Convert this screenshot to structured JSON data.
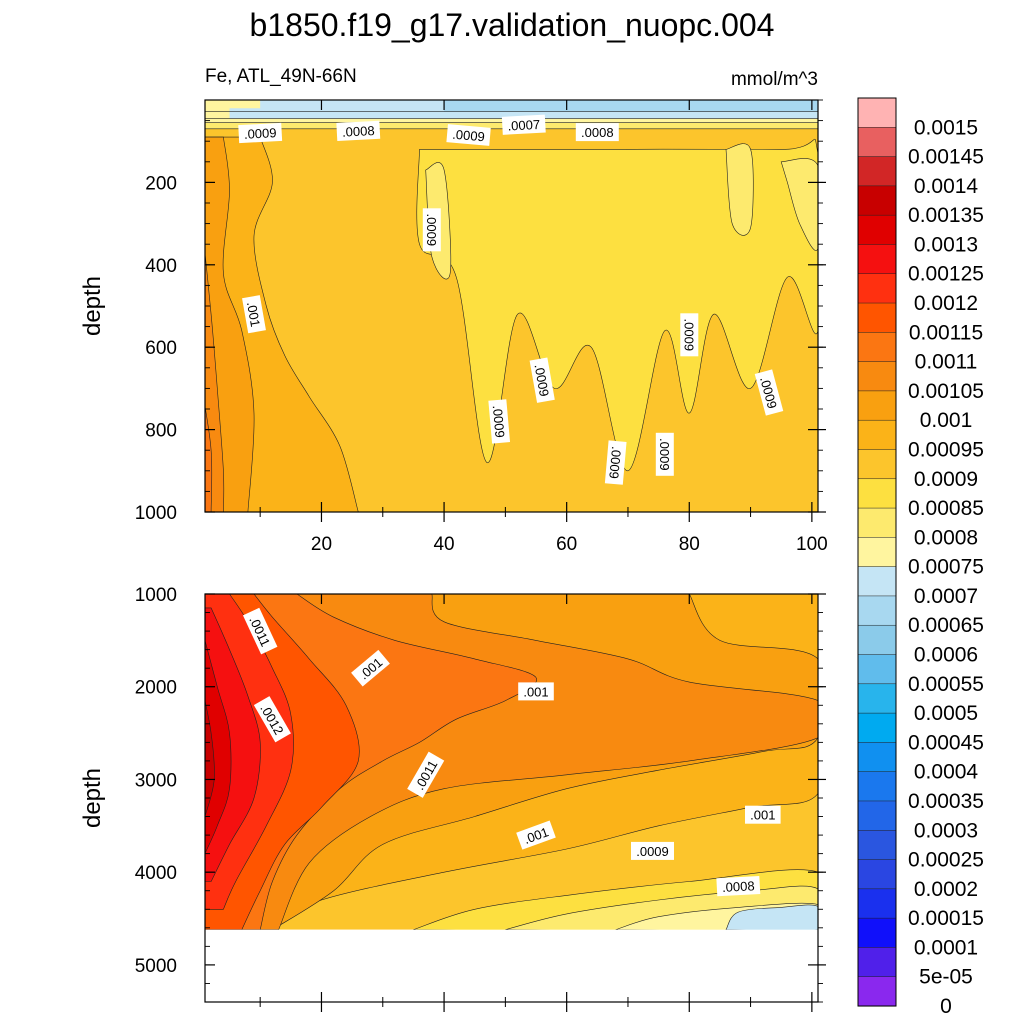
{
  "chart_data": {
    "type": "heatmap",
    "title": "b1850.f19_g17.validation_nuopc.004",
    "subtitle_left": "Fe, ATL_49N-66N",
    "units": "mmol/m^3",
    "xticks": [
      "20",
      "40",
      "60",
      "80",
      "100"
    ],
    "xlim": [
      1,
      101
    ],
    "panels": [
      {
        "ylabel": "depth",
        "ylim": [
          0,
          1000
        ],
        "yticks": [
          "200",
          "400",
          "600",
          "800",
          "1000"
        ],
        "contour_labels": [
          {
            "text": ".0009",
            "x": 10,
            "y": 80,
            "rot": -3
          },
          {
            "text": ".0008",
            "x": 26,
            "y": 75,
            "rot": -3
          },
          {
            "text": ".0009",
            "x": 44,
            "y": 85,
            "rot": 5
          },
          {
            "text": ".0007",
            "x": 53,
            "y": 60,
            "rot": -3
          },
          {
            "text": ".0008",
            "x": 65,
            "y": 78,
            "rot": 0
          },
          {
            "text": ".0009",
            "x": 38,
            "y": 315,
            "rot": 90
          },
          {
            "text": ".001",
            "x": 9,
            "y": 520,
            "rot": 80
          },
          {
            "text": ".0009",
            "x": 80,
            "y": 570,
            "rot": 90
          },
          {
            "text": ".0009",
            "x": 56,
            "y": 680,
            "rot": 80
          },
          {
            "text": ".0009",
            "x": 93,
            "y": 710,
            "rot": 75
          },
          {
            "text": ".0009",
            "x": 49,
            "y": 780,
            "rot": 85
          },
          {
            "text": ".0009",
            "x": 68,
            "y": 880,
            "rot": 95
          },
          {
            "text": ".0009",
            "x": 76,
            "y": 860,
            "rot": 90
          }
        ]
      },
      {
        "ylabel": "depth",
        "ylim": [
          1000,
          5400
        ],
        "yticks": [
          "1000",
          "2000",
          "3000",
          "4000",
          "5000"
        ],
        "data_max_depth": 4620,
        "contour_labels": [
          {
            "text": ".0011",
            "x": 10,
            "y": 1400,
            "rot": 65
          },
          {
            "text": ".001",
            "x": 28,
            "y": 1800,
            "rot": -40
          },
          {
            "text": ".0012",
            "x": 12,
            "y": 2350,
            "rot": 60
          },
          {
            "text": ".001",
            "x": 55,
            "y": 2050,
            "rot": 0
          },
          {
            "text": ".0011",
            "x": 37,
            "y": 2950,
            "rot": -60
          },
          {
            "text": ".001",
            "x": 92,
            "y": 3380,
            "rot": 0
          },
          {
            "text": ".001",
            "x": 55,
            "y": 3600,
            "rot": -20
          },
          {
            "text": ".0009",
            "x": 74,
            "y": 3770,
            "rot": 0
          },
          {
            "text": ".0008",
            "x": 88,
            "y": 4150,
            "rot": -3
          }
        ]
      }
    ],
    "colorbar": {
      "levels": [
        "0.0015",
        "0.00145",
        "0.0014",
        "0.00135",
        "0.0013",
        "0.00125",
        "0.0012",
        "0.00115",
        "0.0011",
        "0.00105",
        "0.001",
        "0.00095",
        "0.0009",
        "0.00085",
        "0.0008",
        "0.00075",
        "0.0007",
        "0.00065",
        "0.0006",
        "0.00055",
        "0.0005",
        "0.00045",
        "0.0004",
        "0.00035",
        "0.0003",
        "0.00025",
        "0.0002",
        "0.00015",
        "0.0001",
        "5e-05",
        "0"
      ],
      "colors": [
        "#ffb3b3",
        "#e86060",
        "#d22626",
        "#c80000",
        "#e00000",
        "#f51010",
        "#ff3010",
        "#ff5500",
        "#fb7612",
        "#f88a10",
        "#f9a010",
        "#fbb318",
        "#fcc52c",
        "#fde040",
        "#fdea6e",
        "#fff59f",
        "#c5e5f5",
        "#a8d8f0",
        "#8bcbea",
        "#60bcec",
        "#28b4ec",
        "#00aaf0",
        "#1090f0",
        "#1a78ee",
        "#2266e8",
        "#2a56e0",
        "#2a46e2",
        "#1a30ee",
        "#1010fa",
        "#5020ea",
        "#8a28ee"
      ]
    }
  }
}
